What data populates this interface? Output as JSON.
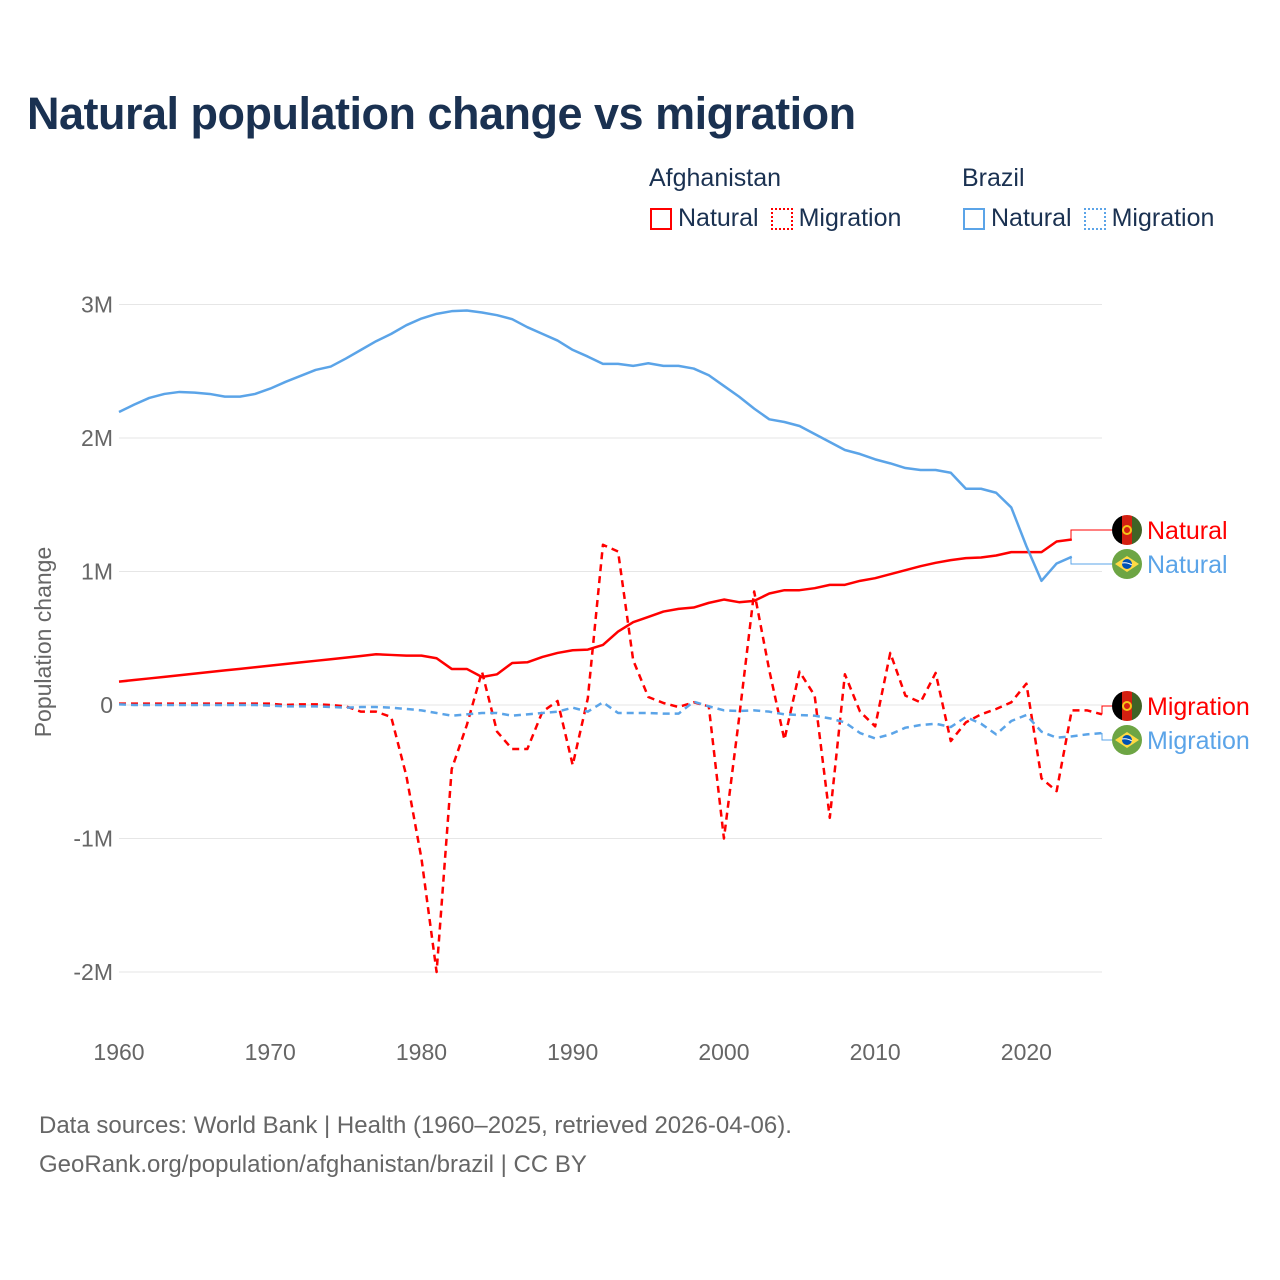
{
  "chart_data": {
    "type": "line",
    "title": "Natural population change vs migration",
    "xlabel": "",
    "ylabel": "Population change",
    "xlim": [
      1960,
      2025
    ],
    "ylim": [
      -2000000,
      3000000
    ],
    "x_ticks": [
      "1960",
      "1970",
      "1980",
      "1990",
      "2000",
      "2010",
      "2020"
    ],
    "y_ticks": [
      {
        "v": 3,
        "label": "3M"
      },
      {
        "v": 2,
        "label": "2M"
      },
      {
        "v": 1,
        "label": "1M"
      },
      {
        "v": 0,
        "label": "0"
      },
      {
        "v": -1,
        "label": "-1M"
      },
      {
        "v": -2,
        "label": "-2M"
      }
    ],
    "unit": "millions",
    "grid": true,
    "legend": {
      "placement": "top-right",
      "groups": [
        {
          "name": "Afghanistan",
          "items": [
            "Natural",
            "Migration"
          ]
        },
        {
          "name": "Brazil",
          "items": [
            "Natural",
            "Migration"
          ]
        }
      ]
    },
    "series": [
      {
        "name": "Afghanistan Natural",
        "label": "Natural",
        "country": "Afghanistan",
        "color": "#ff0000",
        "dash": false,
        "start": 1960,
        "values": [
          0.175,
          0.187,
          0.199,
          0.211,
          0.223,
          0.235,
          0.247,
          0.259,
          0.271,
          0.283,
          0.295,
          0.307,
          0.319,
          0.331,
          0.343,
          0.355,
          0.367,
          0.38,
          0.375,
          0.37,
          0.37,
          0.35,
          0.27,
          0.27,
          0.21,
          0.23,
          0.315,
          0.32,
          0.36,
          0.39,
          0.41,
          0.415,
          0.45,
          0.55,
          0.62,
          0.66,
          0.7,
          0.72,
          0.73,
          0.765,
          0.79,
          0.77,
          0.78,
          0.835,
          0.86,
          0.86,
          0.875,
          0.9,
          0.9,
          0.93,
          0.95,
          0.98,
          1.01,
          1.04,
          1.065,
          1.085,
          1.1,
          1.105,
          1.12,
          1.145,
          1.145,
          1.145,
          1.225,
          1.24
        ]
      },
      {
        "name": "Brazil Natural",
        "label": "Natural",
        "country": "Brazil",
        "color": "#5ba4e8",
        "dash": false,
        "start": 1960,
        "values": [
          2.195,
          2.25,
          2.3,
          2.33,
          2.345,
          2.34,
          2.33,
          2.31,
          2.31,
          2.33,
          2.37,
          2.42,
          2.465,
          2.51,
          2.535,
          2.595,
          2.66,
          2.725,
          2.78,
          2.845,
          2.895,
          2.93,
          2.95,
          2.955,
          2.94,
          2.92,
          2.89,
          2.83,
          2.78,
          2.73,
          2.66,
          2.61,
          2.555,
          2.555,
          2.54,
          2.56,
          2.54,
          2.54,
          2.52,
          2.47,
          2.39,
          2.31,
          2.22,
          2.14,
          2.12,
          2.09,
          2.03,
          1.97,
          1.91,
          1.88,
          1.84,
          1.81,
          1.775,
          1.76,
          1.76,
          1.74,
          1.62,
          1.62,
          1.59,
          1.48,
          1.19,
          0.93,
          1.06,
          1.11
        ]
      },
      {
        "name": "Afghanistan Migration",
        "label": "Migration",
        "country": "Afghanistan",
        "color": "#ff0000",
        "dash": true,
        "start": 1960,
        "values": [
          0.01,
          0.01,
          0.01,
          0.01,
          0.01,
          0.01,
          0.01,
          0.01,
          0.01,
          0.01,
          0.01,
          0.0,
          0.005,
          0.005,
          0.0,
          -0.01,
          -0.05,
          -0.05,
          -0.09,
          -0.53,
          -1.15,
          -2.0,
          -0.48,
          -0.15,
          0.25,
          -0.2,
          -0.33,
          -0.33,
          -0.05,
          0.03,
          -0.45,
          0.05,
          1.2,
          1.15,
          0.335,
          0.06,
          0.015,
          -0.015,
          0.02,
          -0.01,
          -1.0,
          -0.1,
          0.85,
          0.26,
          -0.26,
          0.25,
          0.07,
          -0.845,
          0.23,
          -0.05,
          -0.16,
          0.39,
          0.07,
          0.02,
          0.24,
          -0.27,
          -0.13,
          -0.07,
          -0.03,
          0.02,
          0.16,
          -0.55,
          -0.645,
          -0.04,
          -0.04,
          -0.07
        ]
      },
      {
        "name": "Brazil Migration",
        "label": "Migration",
        "country": "Brazil",
        "color": "#5ba4e8",
        "dash": true,
        "start": 1960,
        "values": [
          0.005,
          0.0,
          0.0,
          0.0,
          0.0,
          0.0,
          0.0,
          0.0,
          0.0,
          0.0,
          -0.005,
          -0.01,
          -0.01,
          -0.01,
          -0.015,
          -0.02,
          -0.015,
          -0.015,
          -0.02,
          -0.03,
          -0.04,
          -0.06,
          -0.08,
          -0.07,
          -0.06,
          -0.06,
          -0.08,
          -0.07,
          -0.06,
          -0.05,
          -0.02,
          -0.05,
          0.02,
          -0.06,
          -0.06,
          -0.06,
          -0.065,
          -0.065,
          0.025,
          -0.01,
          -0.04,
          -0.045,
          -0.04,
          -0.05,
          -0.07,
          -0.075,
          -0.08,
          -0.1,
          -0.13,
          -0.21,
          -0.25,
          -0.22,
          -0.17,
          -0.15,
          -0.14,
          -0.165,
          -0.09,
          -0.14,
          -0.22,
          -0.12,
          -0.075,
          -0.2,
          -0.245,
          -0.235,
          -0.22,
          -0.21
        ]
      }
    ]
  },
  "footer": {
    "line1": "Data sources: World Bank | Health (1960–2025, retrieved 2026-04-06).",
    "line2": "GeoRank.org/population/afghanistan/brazil | CC BY"
  },
  "colors": {
    "afghanistan": "#ff0000",
    "brazil": "#5ba4e8",
    "title": "#1a3151"
  }
}
